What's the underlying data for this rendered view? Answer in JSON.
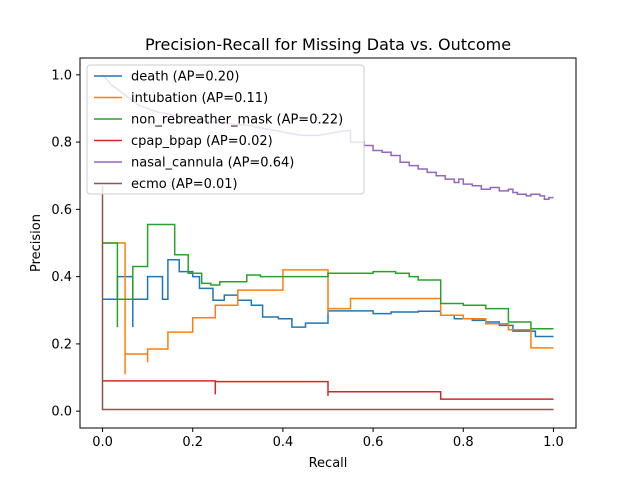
{
  "chart_data": {
    "type": "line",
    "title": "Precision-Recall for Missing Data vs. Outcome",
    "xlabel": "Recall",
    "ylabel": "Precision",
    "xlim": [
      -0.05,
      1.05
    ],
    "ylim": [
      -0.05,
      1.05
    ],
    "xticks": [
      "0.0",
      "0.2",
      "0.4",
      "0.6",
      "0.8",
      "1.0"
    ],
    "yticks": [
      "0.0",
      "0.2",
      "0.4",
      "0.6",
      "0.8",
      "1.0"
    ],
    "grid": false,
    "legend_position": "top-left",
    "series": [
      {
        "name": "death (AP=0.20)",
        "color": "#1f77b4",
        "points": [
          [
            0.0,
            0.333
          ],
          [
            0.033,
            0.333
          ],
          [
            0.033,
            0.4
          ],
          [
            0.067,
            0.4
          ],
          [
            0.067,
            0.25
          ],
          [
            0.067,
            0.333
          ],
          [
            0.1,
            0.333
          ],
          [
            0.1,
            0.4
          ],
          [
            0.133,
            0.4
          ],
          [
            0.133,
            0.333
          ],
          [
            0.145,
            0.333
          ],
          [
            0.145,
            0.45
          ],
          [
            0.17,
            0.45
          ],
          [
            0.17,
            0.415
          ],
          [
            0.2,
            0.415
          ],
          [
            0.2,
            0.4
          ],
          [
            0.215,
            0.4
          ],
          [
            0.215,
            0.365
          ],
          [
            0.245,
            0.365
          ],
          [
            0.245,
            0.33
          ],
          [
            0.27,
            0.33
          ],
          [
            0.27,
            0.345
          ],
          [
            0.3,
            0.345
          ],
          [
            0.3,
            0.33
          ],
          [
            0.33,
            0.33
          ],
          [
            0.33,
            0.315
          ],
          [
            0.355,
            0.315
          ],
          [
            0.355,
            0.28
          ],
          [
            0.39,
            0.28
          ],
          [
            0.39,
            0.275
          ],
          [
            0.42,
            0.275
          ],
          [
            0.42,
            0.25
          ],
          [
            0.45,
            0.25
          ],
          [
            0.45,
            0.262
          ],
          [
            0.5,
            0.262
          ],
          [
            0.5,
            0.298
          ],
          [
            0.6,
            0.298
          ],
          [
            0.6,
            0.29
          ],
          [
            0.64,
            0.29
          ],
          [
            0.64,
            0.295
          ],
          [
            0.7,
            0.295
          ],
          [
            0.7,
            0.297
          ],
          [
            0.75,
            0.297
          ],
          [
            0.75,
            0.285
          ],
          [
            0.78,
            0.285
          ],
          [
            0.78,
            0.275
          ],
          [
            0.82,
            0.275
          ],
          [
            0.82,
            0.27
          ],
          [
            0.85,
            0.27
          ],
          [
            0.85,
            0.265
          ],
          [
            0.88,
            0.265
          ],
          [
            0.88,
            0.255
          ],
          [
            0.91,
            0.255
          ],
          [
            0.91,
            0.238
          ],
          [
            0.96,
            0.238
          ],
          [
            0.96,
            0.222
          ],
          [
            1.0,
            0.222
          ]
        ]
      },
      {
        "name": "intubation (AP=0.11)",
        "color": "#ff7f0e",
        "points": [
          [
            0.0,
            0.5
          ],
          [
            0.05,
            0.5
          ],
          [
            0.05,
            0.11
          ],
          [
            0.05,
            0.17
          ],
          [
            0.1,
            0.17
          ],
          [
            0.1,
            0.145
          ],
          [
            0.1,
            0.185
          ],
          [
            0.145,
            0.185
          ],
          [
            0.145,
            0.235
          ],
          [
            0.2,
            0.235
          ],
          [
            0.2,
            0.278
          ],
          [
            0.25,
            0.278
          ],
          [
            0.25,
            0.315
          ],
          [
            0.3,
            0.315
          ],
          [
            0.3,
            0.36
          ],
          [
            0.4,
            0.36
          ],
          [
            0.4,
            0.42
          ],
          [
            0.5,
            0.42
          ],
          [
            0.5,
            0.29
          ],
          [
            0.5,
            0.305
          ],
          [
            0.55,
            0.305
          ],
          [
            0.55,
            0.335
          ],
          [
            0.75,
            0.335
          ],
          [
            0.75,
            0.285
          ],
          [
            0.8,
            0.285
          ],
          [
            0.8,
            0.275
          ],
          [
            0.85,
            0.275
          ],
          [
            0.85,
            0.26
          ],
          [
            0.9,
            0.26
          ],
          [
            0.9,
            0.242
          ],
          [
            0.95,
            0.242
          ],
          [
            0.95,
            0.188
          ],
          [
            1.0,
            0.188
          ]
        ]
      },
      {
        "name": "non_rebreather_mask (AP=0.22)",
        "color": "#2ca02c",
        "points": [
          [
            0.0,
            0.5
          ],
          [
            0.033,
            0.5
          ],
          [
            0.033,
            0.25
          ],
          [
            0.033,
            0.333
          ],
          [
            0.067,
            0.333
          ],
          [
            0.067,
            0.43
          ],
          [
            0.1,
            0.43
          ],
          [
            0.1,
            0.555
          ],
          [
            0.16,
            0.555
          ],
          [
            0.16,
            0.465
          ],
          [
            0.19,
            0.465
          ],
          [
            0.19,
            0.41
          ],
          [
            0.22,
            0.41
          ],
          [
            0.22,
            0.38
          ],
          [
            0.24,
            0.38
          ],
          [
            0.24,
            0.375
          ],
          [
            0.26,
            0.375
          ],
          [
            0.26,
            0.385
          ],
          [
            0.32,
            0.385
          ],
          [
            0.32,
            0.405
          ],
          [
            0.35,
            0.405
          ],
          [
            0.35,
            0.4
          ],
          [
            0.5,
            0.4
          ],
          [
            0.5,
            0.41
          ],
          [
            0.6,
            0.41
          ],
          [
            0.6,
            0.415
          ],
          [
            0.65,
            0.415
          ],
          [
            0.65,
            0.41
          ],
          [
            0.68,
            0.41
          ],
          [
            0.68,
            0.4
          ],
          [
            0.7,
            0.4
          ],
          [
            0.7,
            0.39
          ],
          [
            0.75,
            0.39
          ],
          [
            0.75,
            0.32
          ],
          [
            0.8,
            0.32
          ],
          [
            0.8,
            0.315
          ],
          [
            0.85,
            0.315
          ],
          [
            0.85,
            0.305
          ],
          [
            0.9,
            0.305
          ],
          [
            0.9,
            0.265
          ],
          [
            0.95,
            0.265
          ],
          [
            0.95,
            0.245
          ],
          [
            1.0,
            0.245
          ]
        ]
      },
      {
        "name": "cpap_bpap (AP=0.02)",
        "color": "#d62728",
        "points": [
          [
            0.0,
            0.09
          ],
          [
            0.25,
            0.09
          ],
          [
            0.25,
            0.05
          ],
          [
            0.25,
            0.088
          ],
          [
            0.5,
            0.088
          ],
          [
            0.5,
            0.045
          ],
          [
            0.5,
            0.058
          ],
          [
            0.75,
            0.058
          ],
          [
            0.75,
            0.036
          ],
          [
            1.0,
            0.036
          ]
        ]
      },
      {
        "name": "nasal_cannula (AP=0.64)",
        "color": "#9467bd",
        "points": [
          [
            0.0,
            1.0
          ],
          [
            0.02,
            0.97
          ],
          [
            0.05,
            0.94
          ],
          [
            0.08,
            0.91
          ],
          [
            0.12,
            0.89
          ],
          [
            0.16,
            0.88
          ],
          [
            0.2,
            0.87
          ],
          [
            0.24,
            0.86
          ],
          [
            0.28,
            0.855
          ],
          [
            0.32,
            0.85
          ],
          [
            0.36,
            0.84
          ],
          [
            0.4,
            0.83
          ],
          [
            0.44,
            0.82
          ],
          [
            0.48,
            0.82
          ],
          [
            0.52,
            0.83
          ],
          [
            0.55,
            0.835
          ],
          [
            0.55,
            0.8
          ],
          [
            0.58,
            0.8
          ],
          [
            0.58,
            0.79
          ],
          [
            0.6,
            0.79
          ],
          [
            0.6,
            0.775
          ],
          [
            0.62,
            0.775
          ],
          [
            0.62,
            0.77
          ],
          [
            0.64,
            0.77
          ],
          [
            0.64,
            0.76
          ],
          [
            0.66,
            0.76
          ],
          [
            0.66,
            0.74
          ],
          [
            0.68,
            0.74
          ],
          [
            0.68,
            0.73
          ],
          [
            0.7,
            0.73
          ],
          [
            0.7,
            0.72
          ],
          [
            0.72,
            0.72
          ],
          [
            0.72,
            0.71
          ],
          [
            0.74,
            0.71
          ],
          [
            0.74,
            0.7
          ],
          [
            0.76,
            0.7
          ],
          [
            0.76,
            0.69
          ],
          [
            0.78,
            0.69
          ],
          [
            0.78,
            0.68
          ],
          [
            0.79,
            0.68
          ],
          [
            0.79,
            0.69
          ],
          [
            0.8,
            0.69
          ],
          [
            0.8,
            0.675
          ],
          [
            0.82,
            0.675
          ],
          [
            0.82,
            0.67
          ],
          [
            0.84,
            0.67
          ],
          [
            0.84,
            0.66
          ],
          [
            0.86,
            0.66
          ],
          [
            0.86,
            0.665
          ],
          [
            0.88,
            0.665
          ],
          [
            0.88,
            0.655
          ],
          [
            0.9,
            0.655
          ],
          [
            0.9,
            0.66
          ],
          [
            0.91,
            0.66
          ],
          [
            0.91,
            0.65
          ],
          [
            0.92,
            0.65
          ],
          [
            0.92,
            0.645
          ],
          [
            0.94,
            0.645
          ],
          [
            0.94,
            0.64
          ],
          [
            0.95,
            0.64
          ],
          [
            0.95,
            0.645
          ],
          [
            0.97,
            0.645
          ],
          [
            0.97,
            0.64
          ],
          [
            0.98,
            0.64
          ],
          [
            0.98,
            0.63
          ],
          [
            0.99,
            0.63
          ],
          [
            0.99,
            0.635
          ],
          [
            1.0,
            0.635
          ]
        ]
      },
      {
        "name": "ecmo (AP=0.01)",
        "color": "#8c564b",
        "points": [
          [
            0.0,
            0.67
          ],
          [
            0.0,
            0.005
          ],
          [
            1.0,
            0.005
          ]
        ]
      }
    ]
  }
}
